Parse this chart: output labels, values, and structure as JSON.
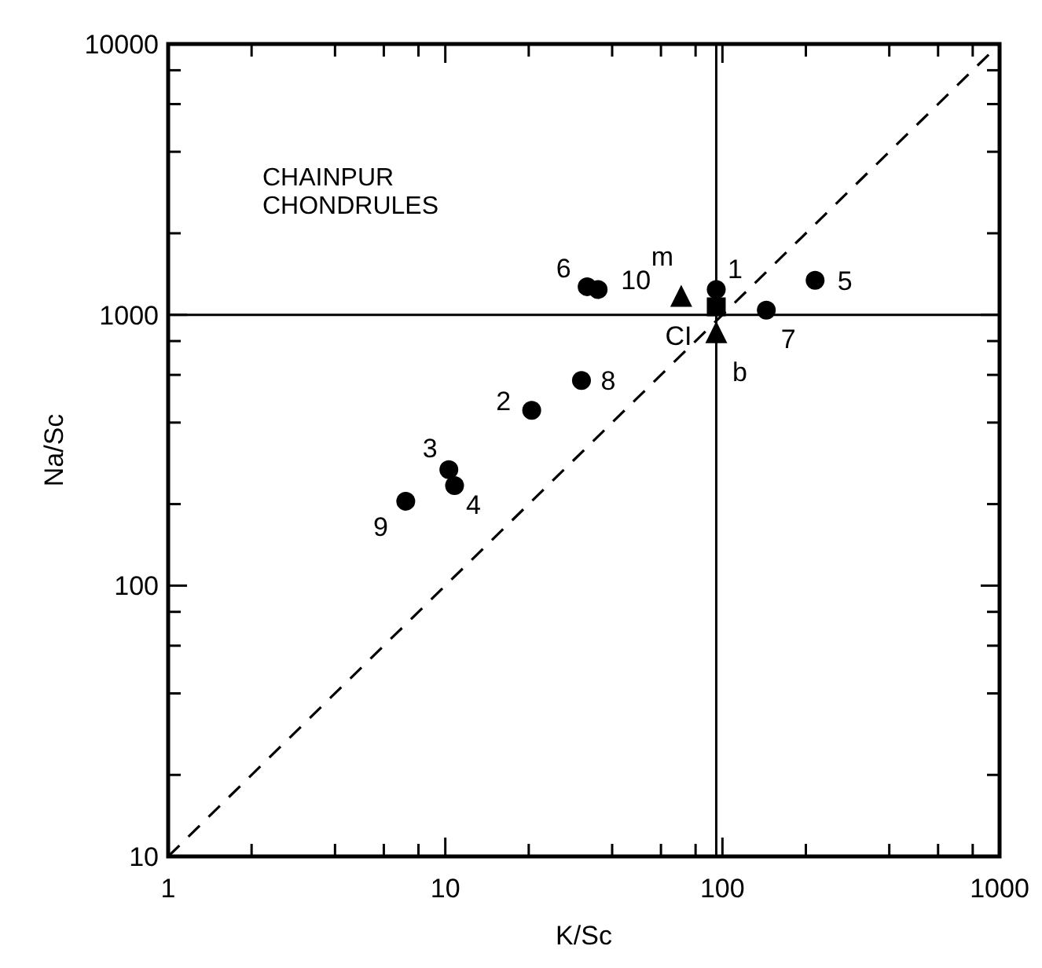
{
  "chart_data": {
    "type": "scatter",
    "xlabel": "K/Sc",
    "ylabel": "Na/Sc",
    "log": "xy",
    "grid": false,
    "xlim": [
      1,
      1000
    ],
    "ylim": [
      10,
      10000
    ],
    "xticks": [
      1,
      {
        "value": 2,
        "label": null
      },
      {
        "value": 4,
        "label": null
      },
      {
        "value": 6,
        "label": null
      },
      {
        "value": 8,
        "label": null
      },
      10,
      {
        "value": 20,
        "label": null
      },
      {
        "value": 40,
        "label": null
      },
      {
        "value": 60,
        "label": null
      },
      {
        "value": 80,
        "label": null
      },
      100,
      {
        "value": 200,
        "label": null
      },
      {
        "value": 400,
        "label": null
      },
      {
        "value": 600,
        "label": null
      },
      {
        "value": 800,
        "label": null
      },
      1000
    ],
    "yticks": [
      10,
      {
        "value": 20,
        "label": null
      },
      {
        "value": 40,
        "label": null
      },
      {
        "value": 60,
        "label": null
      },
      {
        "value": 80,
        "label": null
      },
      100,
      {
        "value": 200,
        "label": null
      },
      {
        "value": 400,
        "label": null
      },
      {
        "value": 600,
        "label": null
      },
      {
        "value": 800,
        "label": null
      },
      1000,
      {
        "value": 2000,
        "label": null
      },
      {
        "value": 4000,
        "label": null
      },
      {
        "value": 6000,
        "label": null
      },
      {
        "value": 8000,
        "label": null
      },
      10000
    ],
    "series": [
      {
        "marker": "circle",
        "color": "#000000",
        "x": [
          95,
          20.5,
          10.3,
          10.8,
          216,
          32.5,
          144,
          31,
          7.2,
          35.6
        ],
        "values": [
          1240,
          444,
          268,
          234,
          1340,
          1270,
          1040,
          572,
          205,
          1240
        ]
      },
      {
        "marker": "square",
        "color": "#000000",
        "x": [
          95
        ],
        "values": [
          1070
        ]
      },
      {
        "marker": "triangle",
        "color": "#000000",
        "x": [
          71,
          95
        ],
        "values": [
          1160,
          852
        ]
      },
      {
        "type": "line",
        "marker": "none",
        "line_style": "dashed",
        "color": "#000000",
        "x": [
          1,
          1000
        ],
        "values": [
          10,
          10000
        ]
      }
    ],
    "ref_lines": [
      {
        "axis": "x",
        "value": 95,
        "color": "#000000"
      },
      {
        "axis": "y",
        "value": 1000,
        "color": "#000000"
      }
    ],
    "annotations": [
      "CHAINPUR\nCHONDRULES",
      {
        "text": "1",
        "x": 95,
        "y": 1240
      },
      {
        "text": "2",
        "x": 20.5,
        "y": 444
      },
      {
        "text": "3",
        "x": 10.3,
        "y": 268
      },
      {
        "text": "4",
        "x": 10.8,
        "y": 234
      },
      {
        "text": "5",
        "x": 216,
        "y": 1340
      },
      {
        "text": "6",
        "x": 32.5,
        "y": 1270
      },
      {
        "text": "7",
        "x": 144,
        "y": 1040
      },
      {
        "text": "8",
        "x": 31,
        "y": 572
      },
      {
        "text": "9",
        "x": 7.2,
        "y": 205
      },
      {
        "text": "10",
        "x": 35.6,
        "y": 1240
      },
      {
        "text": "CI",
        "x": 95,
        "y": 1070
      },
      {
        "text": "m",
        "x": 71,
        "y": 1160
      },
      {
        "text": "b",
        "x": 95,
        "y": 852
      }
    ]
  }
}
